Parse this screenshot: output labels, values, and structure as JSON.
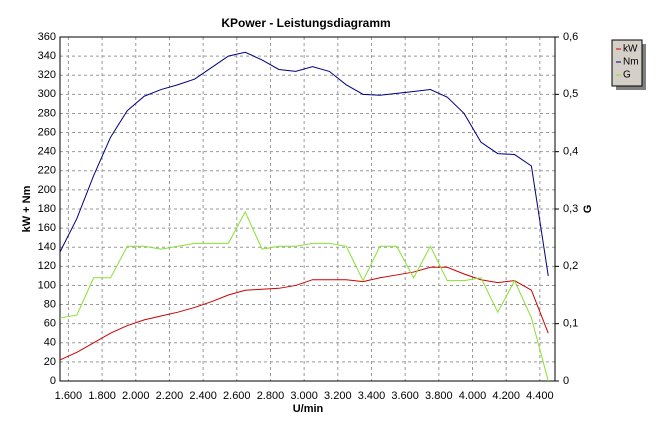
{
  "chart_data": {
    "type": "line",
    "title": "KPower - Leistungsdiagramm",
    "x_label": "U/min",
    "y_label": "kW + Nm",
    "y2_label": "G",
    "x": [
      1550,
      1650,
      1750,
      1850,
      1950,
      2050,
      2150,
      2250,
      2350,
      2450,
      2550,
      2650,
      2750,
      2850,
      2950,
      3050,
      3150,
      3250,
      3350,
      3450,
      3550,
      3650,
      3750,
      3850,
      3950,
      4050,
      4150,
      4250,
      4350,
      4450
    ],
    "series": [
      {
        "name": "kW",
        "color": "#cc0000",
        "values": [
          22,
          30,
          40,
          50,
          58,
          64,
          68,
          72,
          77,
          83,
          90,
          95,
          96,
          97,
          100,
          106,
          106,
          106,
          104,
          108,
          111,
          114,
          119,
          119,
          112,
          106,
          103,
          105,
          95,
          50
        ]
      },
      {
        "name": "Nm",
        "color": "#000080",
        "values": [
          135,
          170,
          215,
          255,
          283,
          298,
          305,
          310,
          316,
          328,
          340,
          344,
          336,
          326,
          324,
          329,
          324,
          310,
          300,
          299,
          301,
          303,
          305,
          297,
          280,
          250,
          238,
          237,
          225,
          110
        ]
      },
      {
        "name": "G",
        "color": "#88e030",
        "axis": "y2",
        "values": [
          0.11,
          0.115,
          0.18,
          0.18,
          0.235,
          0.235,
          0.23,
          0.235,
          0.24,
          0.24,
          0.24,
          0.295,
          0.23,
          0.235,
          0.235,
          0.24,
          0.24,
          0.235,
          0.175,
          0.235,
          0.235,
          0.18,
          0.235,
          0.175,
          0.175,
          0.18,
          0.12,
          0.175,
          0.11,
          0
        ]
      }
    ],
    "xlim": [
      1550,
      4490
    ],
    "xticks": [
      {
        "value": 1600,
        "label": "1.600"
      },
      {
        "value": 1800,
        "label": "1.800"
      },
      {
        "value": 2000,
        "label": "2.000"
      },
      {
        "value": 2200,
        "label": "2.200"
      },
      {
        "value": 2400,
        "label": "2.400"
      },
      {
        "value": 2600,
        "label": "2.600"
      },
      {
        "value": 2800,
        "label": "2.800"
      },
      {
        "value": 3000,
        "label": "3.000"
      },
      {
        "value": 3200,
        "label": "3.200"
      },
      {
        "value": 3400,
        "label": "3.400"
      },
      {
        "value": 3600,
        "label": "3.600"
      },
      {
        "value": 3800,
        "label": "3.800"
      },
      {
        "value": 4000,
        "label": "4.000"
      },
      {
        "value": 4200,
        "label": "4.200"
      },
      {
        "value": 4400,
        "label": "4.400"
      }
    ],
    "ylim": [
      0,
      360
    ],
    "yticks": [
      0,
      20,
      40,
      60,
      80,
      100,
      120,
      140,
      160,
      180,
      200,
      220,
      240,
      260,
      280,
      300,
      320,
      340,
      360
    ],
    "y2lim": [
      0,
      0.6
    ],
    "y2ticks": [
      0,
      {
        "value": 0.1,
        "label": "0,1"
      },
      {
        "value": 0.2,
        "label": "0,2"
      },
      {
        "value": 0.3,
        "label": "0,3"
      },
      {
        "value": 0.4,
        "label": "0,4"
      },
      {
        "value": 0.5,
        "label": "0,5"
      },
      {
        "value": 0.6,
        "label": "0,6"
      }
    ],
    "grid": true
  }
}
